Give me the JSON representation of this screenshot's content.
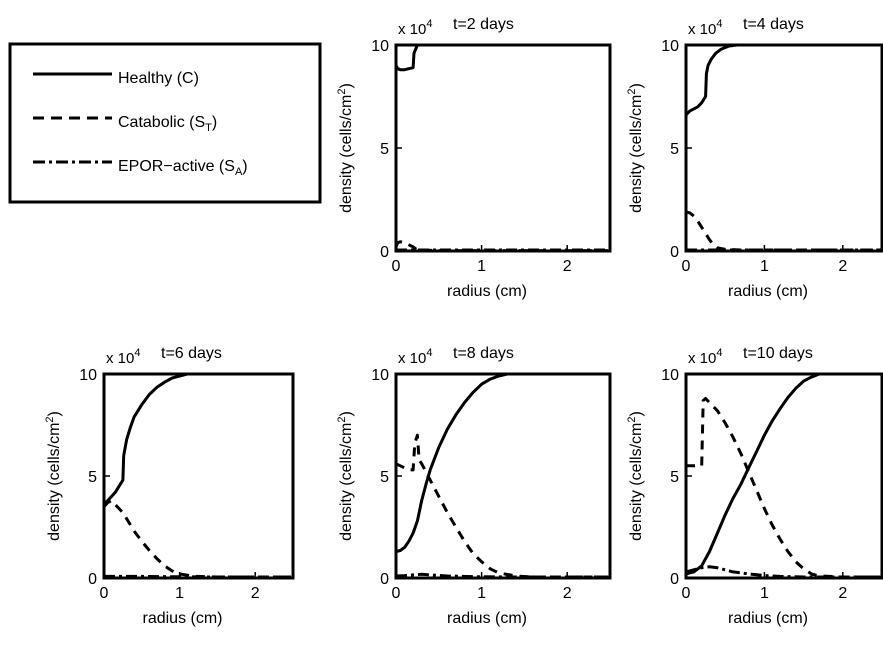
{
  "figure": {
    "legend": [
      {
        "label": "Healthy (C)",
        "line": "solid"
      },
      {
        "label": "Catabolic (S",
        "sub": "T",
        "tail": ")",
        "line": "dashed"
      },
      {
        "label": "EPOR−active (S",
        "sub": "A",
        "tail": ")",
        "line": "dashdot"
      }
    ]
  },
  "chart_data": [
    {
      "type": "line",
      "title": "t=2 days",
      "xlabel": "radius (cm)",
      "ylabel": "density (cells/cm",
      "ylabel_sup": "2",
      "ylabel_tail": ")",
      "exponent": {
        "base": "x 10",
        "power": "4"
      },
      "xlim": [
        0,
        2.5
      ],
      "ylim": [
        0,
        10
      ],
      "xticks": [
        0,
        1,
        2
      ],
      "yticks": [
        0,
        5,
        10
      ],
      "xtick_labels": [
        "0",
        "1",
        "2"
      ],
      "ytick_labels": [
        "0",
        "5",
        "10"
      ],
      "series": [
        {
          "name": "Healthy (C)",
          "line": "solid",
          "x": [
            0,
            0.02,
            0.05,
            0.1,
            0.15,
            0.2,
            0.21,
            0.25,
            0.3,
            0.6,
            1.0,
            1.5,
            2.0,
            2.5
          ],
          "y": [
            9.0,
            8.85,
            8.8,
            8.8,
            8.85,
            8.9,
            9.6,
            10,
            10,
            10,
            10,
            10,
            10,
            10
          ]
        },
        {
          "name": "Catabolic (S_T)",
          "line": "dashed",
          "x": [
            0,
            0.02,
            0.05,
            0.1,
            0.15,
            0.2,
            0.25,
            0.5,
            1.0,
            1.5,
            2.0,
            2.5
          ],
          "y": [
            0.2,
            0.4,
            0.45,
            0.4,
            0.3,
            0.2,
            0.05,
            0.02,
            0.02,
            0.02,
            0.02,
            0.02
          ]
        },
        {
          "name": "EPOR-active (S_A)",
          "line": "dashdot",
          "x": [
            0,
            0.5,
            1.0,
            1.5,
            2.0,
            2.5
          ],
          "y": [
            0.05,
            0.05,
            0.05,
            0.05,
            0.05,
            0.05
          ]
        }
      ]
    },
    {
      "type": "line",
      "title": "t=4 days",
      "xlabel": "radius (cm)",
      "ylabel": "density (cells/cm",
      "ylabel_sup": "2",
      "ylabel_tail": ")",
      "exponent": {
        "base": "x 10",
        "power": "4"
      },
      "xlim": [
        0,
        2.5
      ],
      "ylim": [
        0,
        10
      ],
      "xticks": [
        0,
        1,
        2
      ],
      "yticks": [
        0,
        5,
        10
      ],
      "xtick_labels": [
        "0",
        "1",
        "2"
      ],
      "ytick_labels": [
        "0",
        "5",
        "10"
      ],
      "series": [
        {
          "name": "Healthy (C)",
          "line": "solid",
          "x": [
            0,
            0.05,
            0.1,
            0.15,
            0.2,
            0.25,
            0.26,
            0.28,
            0.32,
            0.38,
            0.45,
            0.55,
            0.65,
            0.8,
            1.0,
            1.5,
            2.0,
            2.5
          ],
          "y": [
            6.6,
            6.8,
            6.9,
            7.0,
            7.2,
            7.5,
            8.6,
            9.0,
            9.3,
            9.6,
            9.8,
            9.95,
            10,
            10,
            10,
            10,
            10,
            10
          ]
        },
        {
          "name": "Catabolic (S_T)",
          "line": "dashed",
          "x": [
            0,
            0.05,
            0.1,
            0.15,
            0.2,
            0.25,
            0.3,
            0.35,
            0.4,
            0.5,
            0.7,
            1.0,
            1.5,
            2.0,
            2.5
          ],
          "y": [
            1.9,
            1.85,
            1.7,
            1.45,
            1.15,
            0.85,
            0.55,
            0.3,
            0.15,
            0.08,
            0.05,
            0.05,
            0.05,
            0.05,
            0.05
          ]
        },
        {
          "name": "EPOR-active (S_A)",
          "line": "dashdot",
          "x": [
            0,
            0.5,
            1.0,
            1.5,
            2.0,
            2.5
          ],
          "y": [
            0.05,
            0.05,
            0.05,
            0.05,
            0.05,
            0.05
          ]
        }
      ]
    },
    {
      "type": "line",
      "title": "t=6 days",
      "xlabel": "radius (cm)",
      "ylabel": "density (cells/cm",
      "ylabel_sup": "2",
      "ylabel_tail": ")",
      "exponent": {
        "base": "x 10",
        "power": "4"
      },
      "xlim": [
        0,
        2.5
      ],
      "ylim": [
        0,
        10
      ],
      "xticks": [
        0,
        1,
        2
      ],
      "yticks": [
        0,
        5,
        10
      ],
      "xtick_labels": [
        "0",
        "1",
        "2"
      ],
      "ytick_labels": [
        "0",
        "5",
        "10"
      ],
      "series": [
        {
          "name": "Healthy (C)",
          "line": "solid",
          "x": [
            0,
            0.05,
            0.1,
            0.15,
            0.2,
            0.25,
            0.26,
            0.3,
            0.35,
            0.4,
            0.5,
            0.6,
            0.7,
            0.8,
            0.9,
            1.0,
            1.1,
            1.5,
            2.0,
            2.5
          ],
          "y": [
            3.6,
            3.8,
            4.0,
            4.2,
            4.5,
            4.8,
            6.0,
            6.8,
            7.4,
            7.9,
            8.5,
            9.0,
            9.35,
            9.6,
            9.8,
            9.9,
            10,
            10,
            10,
            10
          ]
        },
        {
          "name": "Catabolic (S_T)",
          "line": "dashed",
          "x": [
            0,
            0.05,
            0.1,
            0.15,
            0.2,
            0.25,
            0.3,
            0.35,
            0.4,
            0.5,
            0.6,
            0.7,
            0.8,
            0.9,
            1.0,
            1.2,
            1.5,
            2.0,
            2.5
          ],
          "y": [
            3.5,
            3.7,
            3.8,
            3.6,
            3.4,
            3.2,
            2.9,
            2.6,
            2.3,
            1.8,
            1.35,
            0.95,
            0.6,
            0.35,
            0.2,
            0.08,
            0.05,
            0.05,
            0.05
          ]
        },
        {
          "name": "EPOR-active (S_A)",
          "line": "dashdot",
          "x": [
            0,
            0.5,
            1.0,
            1.5,
            2.0,
            2.5
          ],
          "y": [
            0.08,
            0.08,
            0.06,
            0.05,
            0.05,
            0.05
          ]
        }
      ]
    },
    {
      "type": "line",
      "title": "t=8 days",
      "xlabel": "radius (cm)",
      "ylabel": "density (cells/cm",
      "ylabel_sup": "2",
      "ylabel_tail": ")",
      "exponent": {
        "base": "x 10",
        "power": "4"
      },
      "xlim": [
        0,
        2.5
      ],
      "ylim": [
        0,
        10
      ],
      "xticks": [
        0,
        1,
        2
      ],
      "yticks": [
        0,
        5,
        10
      ],
      "xtick_labels": [
        "0",
        "1",
        "2"
      ],
      "ytick_labels": [
        "0",
        "5",
        "10"
      ],
      "series": [
        {
          "name": "Healthy (C)",
          "line": "solid",
          "x": [
            0,
            0.05,
            0.1,
            0.15,
            0.2,
            0.25,
            0.3,
            0.35,
            0.4,
            0.5,
            0.6,
            0.7,
            0.8,
            0.9,
            1.0,
            1.1,
            1.2,
            1.3,
            1.5,
            2.0,
            2.5
          ],
          "y": [
            1.3,
            1.35,
            1.5,
            1.8,
            2.2,
            2.8,
            3.8,
            4.6,
            5.3,
            6.4,
            7.3,
            8.0,
            8.6,
            9.1,
            9.5,
            9.75,
            9.9,
            10,
            10,
            10,
            10
          ]
        },
        {
          "name": "Catabolic (S_T)",
          "line": "dashed",
          "x": [
            0,
            0.05,
            0.1,
            0.15,
            0.2,
            0.22,
            0.25,
            0.27,
            0.3,
            0.35,
            0.4,
            0.5,
            0.6,
            0.7,
            0.8,
            0.9,
            1.0,
            1.1,
            1.2,
            1.4,
            1.6,
            2.0,
            2.5
          ],
          "y": [
            5.6,
            5.5,
            5.4,
            5.3,
            5.3,
            6.6,
            7.0,
            5.8,
            5.6,
            5.2,
            4.8,
            4.0,
            3.2,
            2.5,
            1.8,
            1.2,
            0.8,
            0.45,
            0.25,
            0.1,
            0.05,
            0.05,
            0.05
          ]
        },
        {
          "name": "EPOR-active (S_A)",
          "line": "dashdot",
          "x": [
            0,
            0.1,
            0.2,
            0.3,
            0.4,
            0.6,
            1.0,
            1.5,
            2.0,
            2.5
          ],
          "y": [
            0.1,
            0.12,
            0.15,
            0.18,
            0.15,
            0.1,
            0.06,
            0.05,
            0.05,
            0.05
          ]
        }
      ]
    },
    {
      "type": "line",
      "title": "t=10 days",
      "xlabel": "radius (cm)",
      "ylabel": "density (cells/cm",
      "ylabel_sup": "2",
      "ylabel_tail": ")",
      "exponent": {
        "base": "x 10",
        "power": "4"
      },
      "xlim": [
        0,
        2.5
      ],
      "ylim": [
        0,
        10
      ],
      "xticks": [
        0,
        1,
        2
      ],
      "yticks": [
        0,
        5,
        10
      ],
      "xtick_labels": [
        "0",
        "1",
        "2"
      ],
      "ytick_labels": [
        "0",
        "5",
        "10"
      ],
      "series": [
        {
          "name": "Healthy (C)",
          "line": "solid",
          "x": [
            0,
            0.1,
            0.2,
            0.3,
            0.4,
            0.5,
            0.6,
            0.7,
            0.8,
            0.9,
            1.0,
            1.1,
            1.2,
            1.3,
            1.4,
            1.5,
            1.6,
            1.7,
            1.8,
            2.0,
            2.5
          ],
          "y": [
            0.2,
            0.3,
            0.6,
            1.3,
            2.2,
            3.1,
            3.9,
            4.6,
            5.4,
            6.2,
            7.0,
            7.7,
            8.3,
            8.85,
            9.3,
            9.65,
            9.85,
            10,
            10,
            10,
            10
          ]
        },
        {
          "name": "Catabolic (S_T)",
          "line": "dashed",
          "x": [
            0,
            0.1,
            0.2,
            0.22,
            0.25,
            0.3,
            0.4,
            0.5,
            0.6,
            0.7,
            0.8,
            0.9,
            1.0,
            1.1,
            1.2,
            1.3,
            1.4,
            1.5,
            1.6,
            1.7,
            2.0,
            2.5
          ],
          "y": [
            5.5,
            5.5,
            5.5,
            8.7,
            8.8,
            8.6,
            8.2,
            7.6,
            6.9,
            6.1,
            5.2,
            4.3,
            3.4,
            2.6,
            1.9,
            1.3,
            0.8,
            0.45,
            0.2,
            0.1,
            0.05,
            0.05
          ]
        },
        {
          "name": "EPOR-active (S_A)",
          "line": "dashdot",
          "x": [
            0,
            0.1,
            0.2,
            0.3,
            0.4,
            0.5,
            0.6,
            0.8,
            1.0,
            1.2,
            1.5,
            2.0,
            2.5
          ],
          "y": [
            0.3,
            0.4,
            0.5,
            0.55,
            0.5,
            0.4,
            0.3,
            0.2,
            0.12,
            0.08,
            0.05,
            0.05,
            0.05
          ]
        }
      ]
    }
  ]
}
